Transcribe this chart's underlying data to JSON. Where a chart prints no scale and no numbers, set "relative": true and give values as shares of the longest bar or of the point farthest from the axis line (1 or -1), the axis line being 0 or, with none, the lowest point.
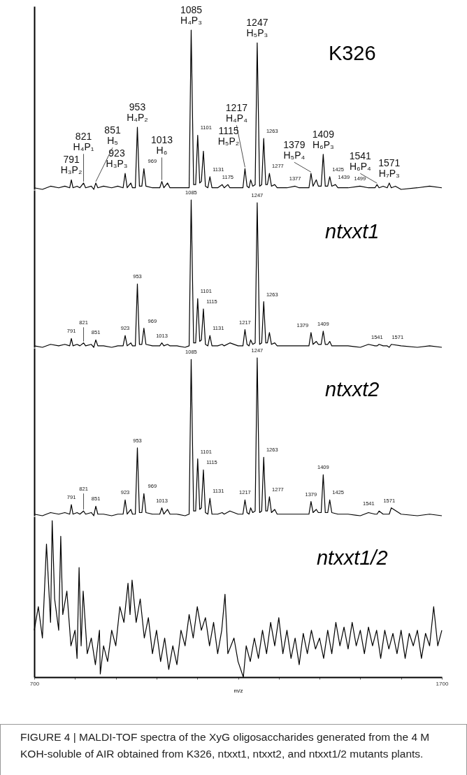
{
  "chart_data": [
    {
      "type": "line",
      "relative": true,
      "xlim": [
        700,
        1700
      ],
      "tick_labels": false,
      "series": [
        {
          "name": "K326",
          "color": "#000000",
          "x": [
            700,
            720,
            740,
            760,
            775,
            787,
            791,
            795,
            805,
            812,
            821,
            826,
            840,
            846,
            851,
            856,
            870,
            890,
            905,
            918,
            923,
            928,
            937,
            941,
            948,
            953,
            958,
            964,
            969,
            974,
            990,
            1008,
            1013,
            1018,
            1027,
            1033,
            1050,
            1070,
            1080,
            1085,
            1091,
            1096,
            1101,
            1106,
            1110,
            1115,
            1120,
            1126,
            1131,
            1136,
            1150,
            1161,
            1166,
            1175,
            1180,
            1200,
            1212,
            1217,
            1222,
            1227,
            1231,
            1236,
            1242,
            1247,
            1253,
            1258,
            1263,
            1268,
            1272,
            1277,
            1282,
            1290,
            1296,
            1320,
            1340,
            1350,
            1374,
            1379,
            1384,
            1392,
            1397,
            1404,
            1409,
            1414,
            1420,
            1425,
            1430,
            1439,
            1445,
            1470,
            1499,
            1520,
            1536,
            1541,
            1546,
            1556,
            1566,
            1571,
            1576,
            1586,
            1600,
            1640,
            1670,
            1700
          ],
          "values": [
            0.01,
            0.0,
            0.02,
            0.01,
            0.02,
            0.01,
            0.06,
            0.01,
            0.02,
            0.01,
            0.04,
            0.01,
            0.02,
            0.0,
            0.04,
            0.01,
            0.02,
            0.01,
            0.02,
            0.01,
            0.1,
            0.01,
            0.04,
            0.01,
            0.01,
            0.39,
            0.02,
            0.02,
            0.13,
            0.02,
            0.01,
            0.01,
            0.05,
            0.01,
            0.04,
            0.01,
            0.01,
            0.01,
            0.01,
            1.0,
            0.03,
            0.03,
            0.34,
            0.04,
            0.05,
            0.24,
            0.02,
            0.01,
            0.08,
            0.01,
            0.01,
            0.03,
            0.01,
            0.03,
            0.01,
            0.01,
            0.01,
            0.13,
            0.02,
            0.01,
            0.06,
            0.02,
            0.03,
            0.92,
            0.02,
            0.03,
            0.32,
            0.03,
            0.03,
            0.1,
            0.02,
            0.03,
            0.01,
            0.01,
            0.02,
            0.01,
            0.01,
            0.1,
            0.02,
            0.06,
            0.02,
            0.02,
            0.22,
            0.02,
            0.02,
            0.08,
            0.02,
            0.03,
            0.01,
            0.01,
            0.02,
            0.01,
            0.01,
            0.03,
            0.01,
            0.02,
            0.01,
            0.04,
            0.01,
            0.02,
            0.0,
            0.01,
            0.02,
            0.01
          ]
        }
      ],
      "annotations": [
        {
          "text": "791\nH₃P₂",
          "x": 791,
          "y": 0.06
        },
        {
          "text": "821\nH₄P₁",
          "x": 821,
          "y": 0.04
        },
        {
          "text": "851\nH₅",
          "x": 851,
          "y": 0.04
        },
        {
          "text": "923\nH₃P₃",
          "x": 923,
          "y": 0.1
        },
        {
          "text": "953\nH₄P₂",
          "x": 953,
          "y": 0.39
        },
        {
          "text": "969",
          "x": 969,
          "y": 0.13
        },
        {
          "text": "1013\nH₆",
          "x": 1013,
          "y": 0.05
        },
        {
          "text": "1085\nH₄P₃",
          "x": 1085,
          "y": 1.0
        },
        {
          "text": "1101",
          "x": 1101,
          "y": 0.34
        },
        {
          "text": "1115\nH₅P₂",
          "x": 1115,
          "y": 0.24
        },
        {
          "text": "1131",
          "x": 1131,
          "y": 0.08
        },
        {
          "text": "1175",
          "x": 1175,
          "y": 0.03
        },
        {
          "text": "1217\nH₄P₄",
          "x": 1217,
          "y": 0.13
        },
        {
          "text": "1247\nH₅P₃",
          "x": 1247,
          "y": 0.92
        },
        {
          "text": "1263",
          "x": 1263,
          "y": 0.32
        },
        {
          "text": "1277",
          "x": 1277,
          "y": 0.1
        },
        {
          "text": "1377",
          "x": 1340,
          "y": 0.02
        },
        {
          "text": "1379\nH₅P₄",
          "x": 1379,
          "y": 0.1
        },
        {
          "text": "1409\nH₆P₃",
          "x": 1409,
          "y": 0.22
        },
        {
          "text": "1425",
          "x": 1425,
          "y": 0.08
        },
        {
          "text": "1439",
          "x": 1439,
          "y": 0.03
        },
        {
          "text": "1499",
          "x": 1499,
          "y": 0.02
        },
        {
          "text": "1541\nH₆P₄",
          "x": 1541,
          "y": 0.03
        },
        {
          "text": "1571\nH₇P₃",
          "x": 1571,
          "y": 0.04
        }
      ]
    },
    {
      "type": "line",
      "relative": true,
      "xlim": [
        700,
        1700
      ],
      "tick_labels": false,
      "series": [
        {
          "name": "ntxxt1",
          "color": "#000000",
          "x": [
            700,
            720,
            740,
            760,
            775,
            787,
            791,
            795,
            805,
            812,
            821,
            826,
            840,
            846,
            851,
            856,
            870,
            890,
            905,
            918,
            923,
            928,
            937,
            941,
            948,
            953,
            958,
            964,
            969,
            974,
            990,
            1008,
            1013,
            1018,
            1027,
            1033,
            1050,
            1070,
            1080,
            1085,
            1091,
            1096,
            1101,
            1106,
            1110,
            1115,
            1120,
            1126,
            1131,
            1136,
            1150,
            1161,
            1166,
            1180,
            1200,
            1212,
            1217,
            1222,
            1227,
            1231,
            1236,
            1242,
            1247,
            1253,
            1258,
            1263,
            1268,
            1272,
            1277,
            1282,
            1290,
            1296,
            1320,
            1350,
            1374,
            1379,
            1384,
            1392,
            1397,
            1404,
            1409,
            1414,
            1420,
            1425,
            1430,
            1445,
            1470,
            1500,
            1520,
            1536,
            1541,
            1546,
            1556,
            1566,
            1571,
            1576,
            1600,
            1640,
            1670,
            1700
          ],
          "values": [
            0.01,
            0.0,
            0.02,
            0.01,
            0.02,
            0.01,
            0.06,
            0.01,
            0.02,
            0.01,
            0.03,
            0.01,
            0.02,
            0.0,
            0.05,
            0.01,
            0.01,
            0.0,
            0.01,
            0.01,
            0.08,
            0.01,
            0.03,
            0.01,
            0.01,
            0.43,
            0.02,
            0.02,
            0.13,
            0.02,
            0.01,
            0.01,
            0.03,
            0.01,
            0.02,
            0.01,
            0.01,
            0.0,
            0.01,
            1.0,
            0.03,
            0.03,
            0.33,
            0.04,
            0.05,
            0.26,
            0.02,
            0.01,
            0.08,
            0.01,
            0.01,
            0.02,
            0.01,
            0.03,
            0.01,
            0.01,
            0.12,
            0.02,
            0.01,
            0.05,
            0.02,
            0.03,
            0.98,
            0.02,
            0.03,
            0.31,
            0.03,
            0.03,
            0.1,
            0.02,
            0.03,
            0.01,
            0.01,
            0.01,
            0.01,
            0.1,
            0.02,
            0.04,
            0.02,
            0.02,
            0.11,
            0.02,
            0.02,
            0.04,
            0.01,
            0.01,
            0.01,
            0.0,
            0.02,
            0.01,
            0.01,
            0.02,
            0.01,
            0.01,
            0.0,
            0.02,
            0.01,
            0.0,
            0.01,
            0.0
          ]
        }
      ],
      "annotations": [
        {
          "text": "791",
          "x": 791,
          "y": 0.06
        },
        {
          "text": "821",
          "x": 821,
          "y": 0.03
        },
        {
          "text": "851",
          "x": 851,
          "y": 0.05
        },
        {
          "text": "923",
          "x": 923,
          "y": 0.08
        },
        {
          "text": "953",
          "x": 953,
          "y": 0.43
        },
        {
          "text": "969",
          "x": 969,
          "y": 0.13
        },
        {
          "text": "1013",
          "x": 1013,
          "y": 0.03
        },
        {
          "text": "1085",
          "x": 1085,
          "y": 1.0
        },
        {
          "text": "1101",
          "x": 1101,
          "y": 0.33
        },
        {
          "text": "1115",
          "x": 1115,
          "y": 0.26
        },
        {
          "text": "1131",
          "x": 1131,
          "y": 0.08
        },
        {
          "text": "1217",
          "x": 1217,
          "y": 0.12
        },
        {
          "text": "1247",
          "x": 1247,
          "y": 0.98
        },
        {
          "text": "1263",
          "x": 1263,
          "y": 0.31
        },
        {
          "text": "1379",
          "x": 1379,
          "y": 0.1
        },
        {
          "text": "1409",
          "x": 1409,
          "y": 0.11
        },
        {
          "text": "1541",
          "x": 1541,
          "y": 0.02
        },
        {
          "text": "1571",
          "x": 1571,
          "y": 0.02
        }
      ]
    },
    {
      "type": "line",
      "relative": true,
      "xlim": [
        700,
        1700
      ],
      "tick_labels": false,
      "series": [
        {
          "name": "ntxxt2",
          "color": "#000000",
          "x": [
            700,
            720,
            740,
            760,
            775,
            787,
            791,
            795,
            805,
            812,
            821,
            826,
            840,
            846,
            851,
            856,
            870,
            890,
            905,
            918,
            923,
            928,
            937,
            941,
            948,
            953,
            958,
            964,
            969,
            974,
            990,
            1008,
            1013,
            1018,
            1027,
            1033,
            1050,
            1070,
            1080,
            1085,
            1091,
            1096,
            1101,
            1106,
            1110,
            1115,
            1120,
            1126,
            1131,
            1136,
            1150,
            1161,
            1166,
            1180,
            1200,
            1212,
            1217,
            1222,
            1227,
            1231,
            1236,
            1242,
            1247,
            1253,
            1258,
            1263,
            1268,
            1272,
            1277,
            1282,
            1290,
            1296,
            1320,
            1350,
            1374,
            1379,
            1384,
            1392,
            1397,
            1404,
            1409,
            1414,
            1420,
            1425,
            1430,
            1445,
            1470,
            1500,
            1520,
            1536,
            1541,
            1546,
            1556,
            1566,
            1571,
            1576,
            1600,
            1640,
            1670,
            1700
          ],
          "values": [
            0.01,
            0.0,
            0.02,
            0.01,
            0.02,
            0.01,
            0.07,
            0.01,
            0.02,
            0.01,
            0.03,
            0.01,
            0.02,
            0.0,
            0.06,
            0.01,
            0.01,
            0.0,
            0.01,
            0.01,
            0.1,
            0.01,
            0.04,
            0.01,
            0.01,
            0.43,
            0.02,
            0.02,
            0.14,
            0.02,
            0.01,
            0.01,
            0.05,
            0.01,
            0.04,
            0.01,
            0.01,
            0.0,
            0.01,
            0.99,
            0.03,
            0.03,
            0.36,
            0.04,
            0.05,
            0.29,
            0.02,
            0.01,
            0.11,
            0.01,
            0.01,
            0.02,
            0.01,
            0.03,
            0.01,
            0.01,
            0.1,
            0.02,
            0.01,
            0.05,
            0.02,
            0.03,
            1.0,
            0.02,
            0.03,
            0.37,
            0.03,
            0.03,
            0.12,
            0.02,
            0.04,
            0.01,
            0.01,
            0.01,
            0.01,
            0.09,
            0.02,
            0.04,
            0.02,
            0.02,
            0.26,
            0.02,
            0.02,
            0.1,
            0.02,
            0.01,
            0.01,
            0.0,
            0.02,
            0.01,
            0.01,
            0.03,
            0.01,
            0.01,
            0.01,
            0.05,
            0.01,
            0.0,
            0.01,
            0.0
          ]
        }
      ],
      "annotations": [
        {
          "text": "791",
          "x": 791,
          "y": 0.07
        },
        {
          "text": "821",
          "x": 821,
          "y": 0.03
        },
        {
          "text": "851",
          "x": 851,
          "y": 0.06
        },
        {
          "text": "923",
          "x": 923,
          "y": 0.1
        },
        {
          "text": "953",
          "x": 953,
          "y": 0.43
        },
        {
          "text": "969",
          "x": 969,
          "y": 0.14
        },
        {
          "text": "1013",
          "x": 1013,
          "y": 0.05
        },
        {
          "text": "1085",
          "x": 1085,
          "y": 0.99
        },
        {
          "text": "1101",
          "x": 1101,
          "y": 0.36
        },
        {
          "text": "1115",
          "x": 1115,
          "y": 0.29
        },
        {
          "text": "1131",
          "x": 1131,
          "y": 0.11
        },
        {
          "text": "1217",
          "x": 1217,
          "y": 0.1
        },
        {
          "text": "1247",
          "x": 1247,
          "y": 1.0
        },
        {
          "text": "1263",
          "x": 1263,
          "y": 0.37
        },
        {
          "text": "1277",
          "x": 1277,
          "y": 0.12
        },
        {
          "text": "1379",
          "x": 1379,
          "y": 0.09
        },
        {
          "text": "1409",
          "x": 1409,
          "y": 0.26
        },
        {
          "text": "1425",
          "x": 1425,
          "y": 0.1
        },
        {
          "text": "1541",
          "x": 1541,
          "y": 0.03
        },
        {
          "text": "1571",
          "x": 1571,
          "y": 0.05
        }
      ]
    },
    {
      "type": "line",
      "relative": true,
      "xlim": [
        700,
        1700
      ],
      "tick_labels": "x",
      "xlabel": "m/z",
      "xticks": [
        700,
        {
          "value": 800,
          "label": null
        },
        {
          "value": 900,
          "label": null
        },
        {
          "value": 1000,
          "label": null
        },
        {
          "value": 1100,
          "label": null
        },
        {
          "value": 1200,
          "label": null
        },
        {
          "value": 1300,
          "label": null
        },
        {
          "value": 1400,
          "label": null
        },
        {
          "value": 1500,
          "label": null
        },
        {
          "value": 1600,
          "label": null
        },
        1700
      ],
      "series": [
        {
          "name": "ntxxt1/2",
          "color": "#000000",
          "x": [
            700,
            710,
            720,
            730,
            740,
            744,
            750,
            760,
            765,
            770,
            780,
            790,
            800,
            805,
            810,
            815,
            820,
            830,
            840,
            850,
            860,
            862,
            870,
            880,
            890,
            900,
            910,
            920,
            930,
            935,
            940,
            950,
            960,
            970,
            980,
            990,
            1000,
            1010,
            1020,
            1030,
            1040,
            1050,
            1060,
            1070,
            1080,
            1090,
            1100,
            1110,
            1120,
            1130,
            1140,
            1150,
            1160,
            1168,
            1175,
            1190,
            1200,
            1213,
            1220,
            1230,
            1240,
            1250,
            1260,
            1270,
            1280,
            1290,
            1300,
            1310,
            1320,
            1330,
            1340,
            1350,
            1360,
            1370,
            1380,
            1390,
            1400,
            1410,
            1420,
            1430,
            1440,
            1450,
            1460,
            1470,
            1480,
            1490,
            1500,
            1510,
            1520,
            1530,
            1540,
            1550,
            1560,
            1570,
            1580,
            1590,
            1600,
            1610,
            1620,
            1630,
            1640,
            1650,
            1660,
            1670,
            1680,
            1690,
            1700
          ],
          "values": [
            0.3,
            0.45,
            0.25,
            0.85,
            0.35,
            1.0,
            0.5,
            0.3,
            0.9,
            0.4,
            0.55,
            0.2,
            0.3,
            0.12,
            0.7,
            0.2,
            0.55,
            0.15,
            0.25,
            0.08,
            0.3,
            0.02,
            0.2,
            0.1,
            0.3,
            0.2,
            0.45,
            0.35,
            0.6,
            0.4,
            0.62,
            0.35,
            0.5,
            0.25,
            0.38,
            0.15,
            0.3,
            0.1,
            0.25,
            0.05,
            0.2,
            0.08,
            0.3,
            0.2,
            0.4,
            0.25,
            0.45,
            0.3,
            0.38,
            0.2,
            0.35,
            0.15,
            0.3,
            0.53,
            0.15,
            0.25,
            0.1,
            0.0,
            0.2,
            0.1,
            0.25,
            0.12,
            0.3,
            0.15,
            0.35,
            0.2,
            0.38,
            0.15,
            0.3,
            0.12,
            0.25,
            0.08,
            0.28,
            0.15,
            0.3,
            0.18,
            0.25,
            0.12,
            0.3,
            0.15,
            0.35,
            0.2,
            0.32,
            0.18,
            0.35,
            0.2,
            0.3,
            0.15,
            0.32,
            0.2,
            0.3,
            0.12,
            0.3,
            0.18,
            0.28,
            0.15,
            0.3,
            0.12,
            0.28,
            0.2,
            0.3,
            0.12,
            0.28,
            0.2,
            0.45,
            0.2,
            0.3
          ]
        }
      ],
      "annotations": [
        "FIGURE 4 | MALDI-TOF spectra of the XyG oligosaccharides generated from the 4 M KOH-soluble of AIR obtained from K326, ntxxt1, ntxxt2, and ntxxt1/2 mutants plants."
      ]
    }
  ]
}
